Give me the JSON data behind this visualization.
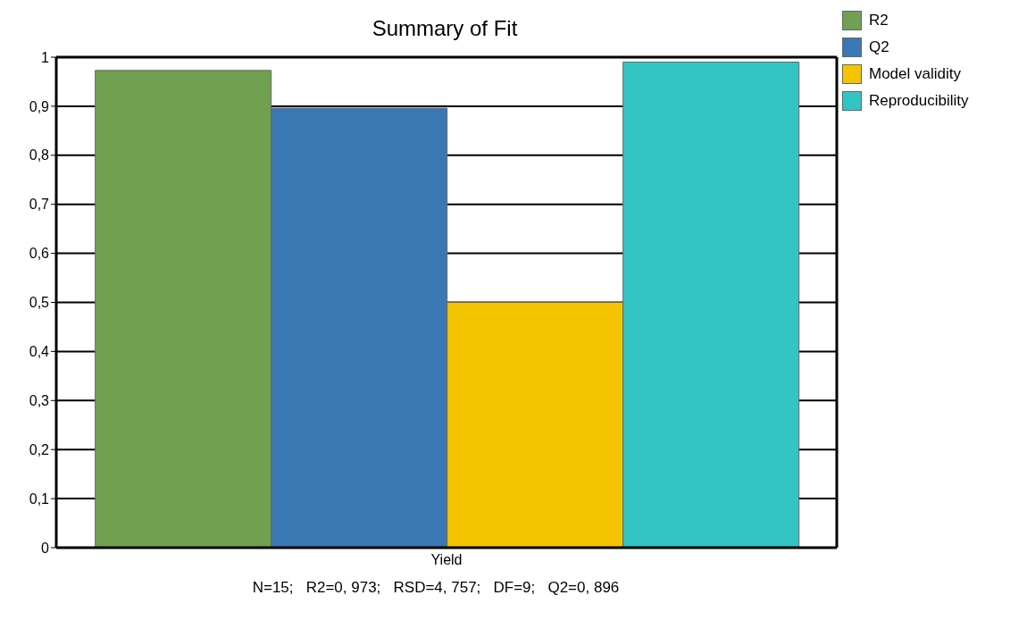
{
  "chart_data": {
    "type": "bar",
    "title": "Summary of Fit",
    "categories": [
      "Yield"
    ],
    "series": [
      {
        "name": "R2",
        "color": "#70a050",
        "values": [
          0.973
        ]
      },
      {
        "name": "Q2",
        "color": "#3a78b4",
        "values": [
          0.896
        ]
      },
      {
        "name": "Model validity",
        "color": "#f5c400",
        "values": [
          0.5
        ]
      },
      {
        "name": "Reproducibility",
        "color": "#33c4c4",
        "values": [
          0.99
        ]
      }
    ],
    "ylim": [
      0,
      1
    ],
    "yticks": [
      0,
      {
        "value": 0.1,
        "label": "0,1"
      },
      {
        "value": 0.2,
        "label": "0,2"
      },
      {
        "value": 0.3,
        "label": "0,3"
      },
      {
        "value": 0.4,
        "label": "0,4"
      },
      {
        "value": 0.5,
        "label": "0,5"
      },
      {
        "value": 0.6,
        "label": "0,6"
      },
      {
        "value": 0.7,
        "label": "0,7"
      },
      {
        "value": 0.8,
        "label": "0,8"
      },
      {
        "value": 0.9,
        "label": "0,9"
      },
      1
    ],
    "grid": "y",
    "legend": "top right",
    "annotations": [
      "N=15;   R2=0, 973;   RSD=4, 757;   DF=9;   Q2=0, 896"
    ]
  }
}
